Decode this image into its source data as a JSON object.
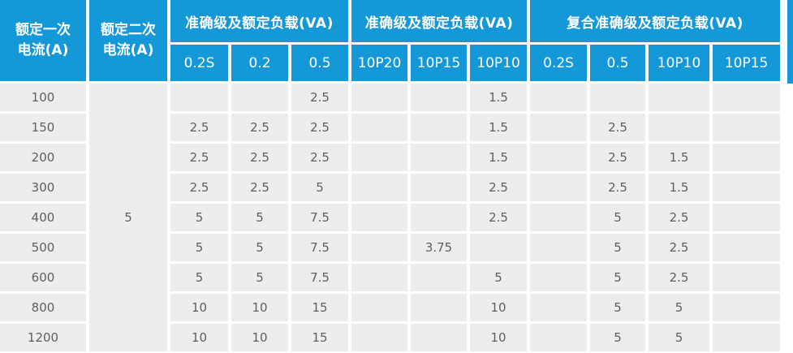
{
  "colors": {
    "header_bg": "#1598d7",
    "header_text": "#ffffff",
    "cell_bg": "#ededed",
    "cell_text": "#5f5f5f",
    "grid_line": "#ffffff"
  },
  "chart_data": {
    "type": "table",
    "title": "",
    "header": {
      "primary_current": {
        "line1": "额定一次",
        "line2": "电流(A)"
      },
      "secondary_current": {
        "line1": "额定二次",
        "line2": "电流(A)"
      },
      "groups": [
        {
          "label": "准确级及额定负载(VA)",
          "cols": [
            "0.2S",
            "0.2",
            "0.5"
          ]
        },
        {
          "label": "准确级及额定负载(VA)",
          "cols": [
            "10P20",
            "10P15",
            "10P10"
          ]
        },
        {
          "label": "复合准确级及额定负载(VA)",
          "cols": [
            "0.2S",
            "0.5",
            "10P10",
            "10P15"
          ]
        }
      ]
    },
    "secondary_current_value": "5",
    "rows": [
      {
        "primary": "100",
        "values": [
          "",
          "",
          "2.5",
          "",
          "",
          "1.5",
          "",
          "",
          "",
          ""
        ]
      },
      {
        "primary": "150",
        "values": [
          "2.5",
          "2.5",
          "2.5",
          "",
          "",
          "1.5",
          "",
          "2.5",
          "",
          ""
        ]
      },
      {
        "primary": "200",
        "values": [
          "2.5",
          "2.5",
          "2.5",
          "",
          "",
          "1.5",
          "",
          "2.5",
          "1.5",
          ""
        ]
      },
      {
        "primary": "300",
        "values": [
          "2.5",
          "2.5",
          "5",
          "",
          "",
          "2.5",
          "",
          "2.5",
          "1.5",
          ""
        ]
      },
      {
        "primary": "400",
        "values": [
          "5",
          "5",
          "7.5",
          "",
          "",
          "2.5",
          "",
          "5",
          "2.5",
          ""
        ]
      },
      {
        "primary": "500",
        "values": [
          "5",
          "5",
          "7.5",
          "",
          "3.75",
          "",
          "",
          "5",
          "2.5",
          ""
        ]
      },
      {
        "primary": "600",
        "values": [
          "5",
          "5",
          "7.5",
          "",
          "",
          "5",
          "",
          "5",
          "2.5",
          ""
        ]
      },
      {
        "primary": "800",
        "values": [
          "10",
          "10",
          "15",
          "",
          "",
          "10",
          "",
          "5",
          "5",
          ""
        ]
      },
      {
        "primary": "1200",
        "values": [
          "10",
          "10",
          "15",
          "",
          "",
          "10",
          "",
          "5",
          "5",
          ""
        ]
      }
    ]
  }
}
